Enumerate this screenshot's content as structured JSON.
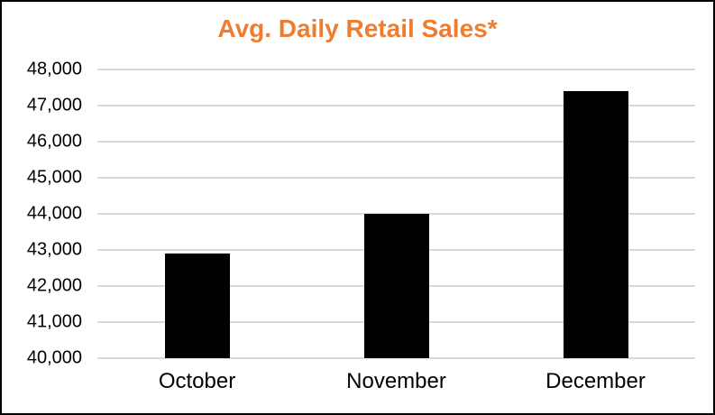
{
  "page": {
    "background": "#ffffff",
    "border_color": "#000000"
  },
  "chart_data": {
    "type": "bar",
    "title": "Avg. Daily Retail Sales*",
    "title_color": "#ED7D31",
    "categories": [
      "October",
      "November",
      "December"
    ],
    "values": [
      42900,
      44000,
      47400
    ],
    "bar_color": "#000000",
    "xlabel": "",
    "ylabel": "",
    "ylim": [
      40000,
      48000
    ],
    "ytick_values": [
      40000,
      41000,
      42000,
      43000,
      44000,
      45000,
      46000,
      47000,
      48000
    ],
    "ytick_labels": [
      "40,000",
      "41,000",
      "42,000",
      "43,000",
      "44,000",
      "45,000",
      "46,000",
      "47,000",
      "48,000"
    ],
    "gridline_color": "#D9D9D9",
    "grid": "horizontal",
    "legend_position": "none"
  }
}
